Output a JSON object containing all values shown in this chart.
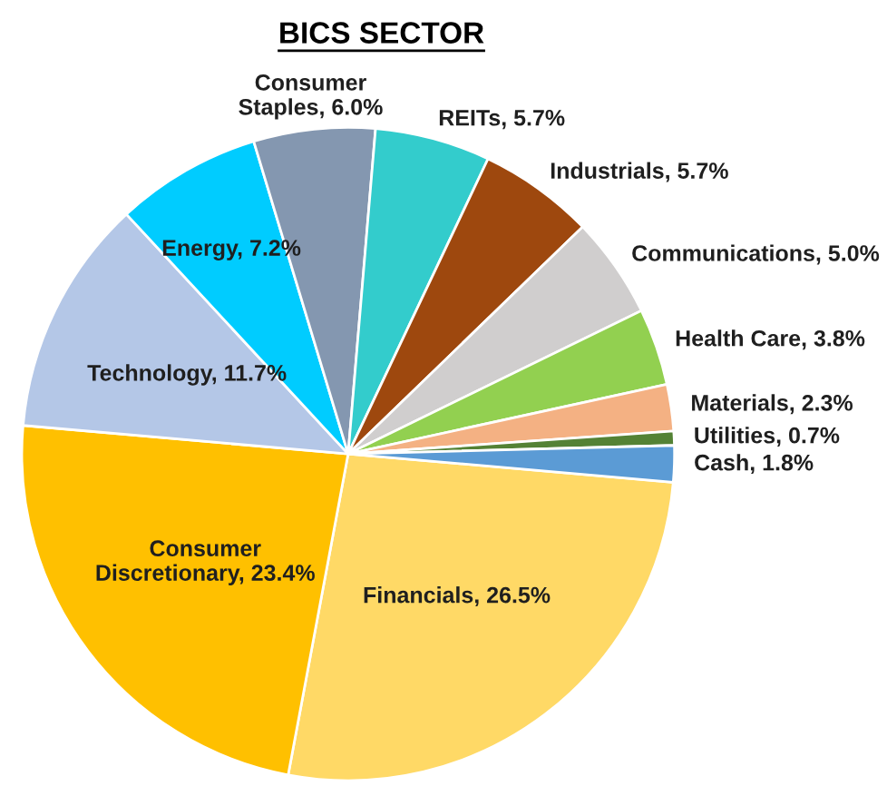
{
  "chart_data": {
    "type": "pie",
    "title": "BICS SECTOR",
    "categories": [
      "Financials",
      "Consumer Discretionary",
      "Technology",
      "Energy",
      "Consumer Staples",
      "REITs",
      "Industrials",
      "Communications",
      "Health Care",
      "Materials",
      "Utilities",
      "Cash"
    ],
    "values": [
      26.5,
      23.4,
      11.7,
      7.2,
      6.0,
      5.7,
      5.7,
      5.0,
      3.8,
      2.3,
      0.7,
      1.8
    ],
    "colors": [
      "#ffd966",
      "#ffc000",
      "#b4c7e7",
      "#00ccff",
      "#8497b0",
      "#33cccc",
      "#9e480e",
      "#d0cece",
      "#92d050",
      "#f4b183",
      "#548235",
      "#5b9bd5"
    ],
    "value_labels": [
      "26.5%",
      "23.4%",
      "11.7%",
      "7.2%",
      "6.0%",
      "5.7%",
      "5.7%",
      "5.0%",
      "3.8%",
      "2.3%",
      "0.7%",
      "1.8%"
    ],
    "legend": false
  }
}
